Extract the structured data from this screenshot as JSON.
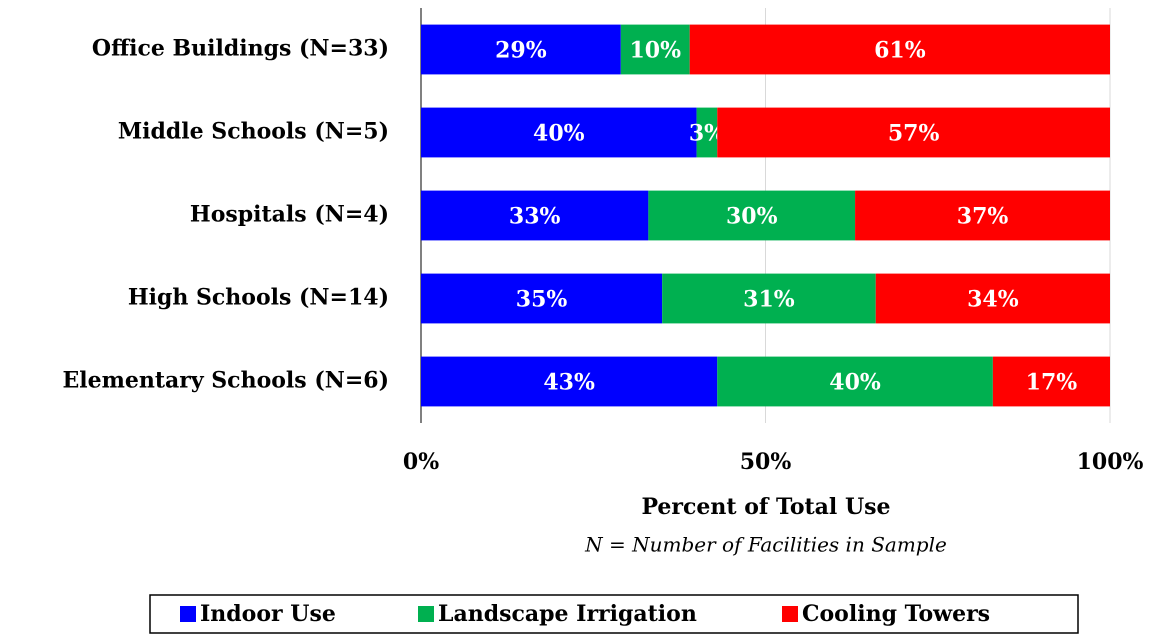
{
  "chart_data": {
    "type": "stacked_bar_horizontal",
    "categories": [
      "Office Buildings (N=33)",
      "Middle Schools (N=5)",
      "Hospitals (N=4)",
      "High Schools (N=14)",
      "Elementary Schools (N=6)"
    ],
    "series": [
      {
        "name": "Indoor Use",
        "color": "#0000ff",
        "values": [
          29,
          40,
          33,
          35,
          43
        ],
        "value_labels": [
          "29%",
          "40%",
          "33%",
          "35%",
          "43%"
        ]
      },
      {
        "name": "Landscape Irrigation",
        "color": "#00b050",
        "values": [
          10,
          3,
          30,
          31,
          40
        ],
        "value_labels": [
          "10%",
          "3%",
          "30%",
          "31%",
          "40%"
        ]
      },
      {
        "name": "Cooling Towers",
        "color": "#ff0000",
        "values": [
          61,
          57,
          37,
          34,
          17
        ],
        "value_labels": [
          "61%",
          "57%",
          "37%",
          "34%",
          "17%"
        ]
      }
    ],
    "xlim": [
      0,
      100
    ],
    "xticks": [
      {
        "value": 0,
        "label": "0%"
      },
      {
        "value": 50,
        "label": "50%"
      },
      {
        "value": 100,
        "label": "100%"
      }
    ],
    "x_label": "Percent of Total Use",
    "note": "N = Number of Facilities in Sample",
    "grid": true,
    "legend": "bottom"
  }
}
